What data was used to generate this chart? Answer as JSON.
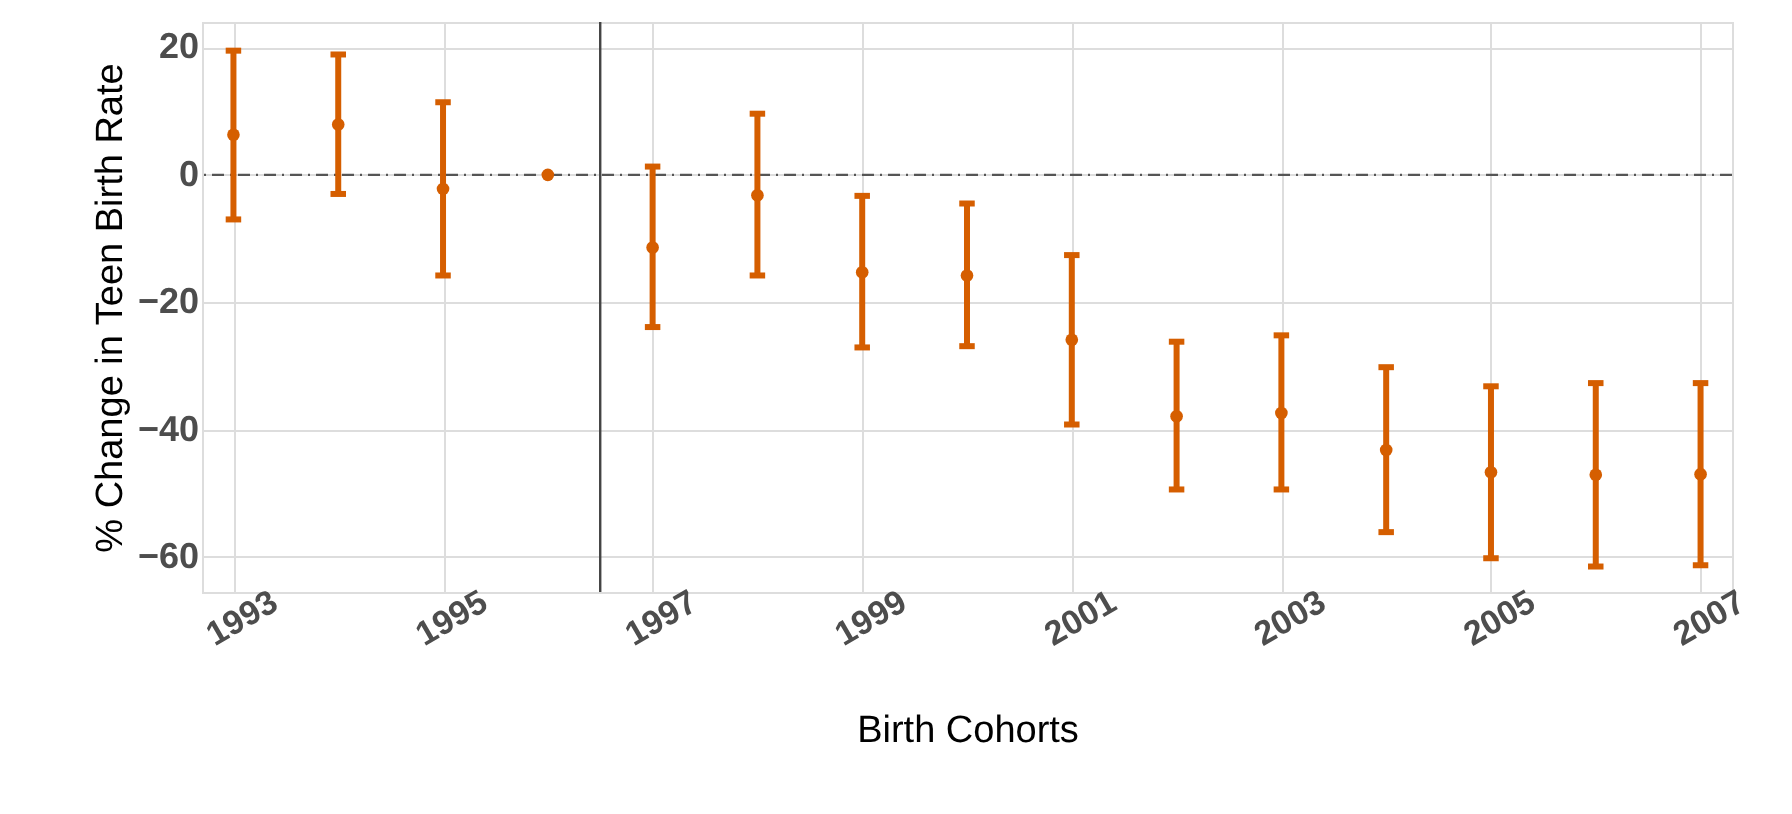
{
  "chart_data": {
    "type": "scatter",
    "xlabel": "Birth Cohorts",
    "ylabel": "% Change in Teen Birth Rate",
    "x": [
      1993,
      1994,
      1995,
      1996,
      1997,
      1998,
      1999,
      2000,
      2001,
      2002,
      2003,
      2004,
      2005,
      2006,
      2007
    ],
    "series": [
      {
        "color": "#d55e00",
        "values": [
          6.3,
          7.9,
          -2.2,
          0,
          -11.4,
          -3.2,
          -15.3,
          -15.8,
          -25.9,
          -37.9,
          -37.4,
          -43.2,
          -46.7,
          -47.1,
          -47.0
        ],
        "errors": [
          [
            -7.0,
            19.5
          ],
          [
            -3.0,
            18.9
          ],
          [
            -15.8,
            11.4
          ],
          null,
          [
            -23.9,
            1.3
          ],
          [
            -15.8,
            9.6
          ],
          [
            -27.1,
            -3.3
          ],
          [
            -26.9,
            -4.5
          ],
          [
            -39.2,
            -12.6
          ],
          [
            -49.4,
            -26.2
          ],
          [
            -49.4,
            -25.2
          ],
          [
            -56.1,
            -30.2
          ],
          [
            -60.2,
            -33.2
          ],
          [
            -61.5,
            -32.7
          ],
          [
            -61.3,
            -32.7
          ]
        ]
      }
    ],
    "xlim": [
      1992.7,
      2007.3
    ],
    "xticks": [
      1993,
      1995,
      1997,
      1999,
      2001,
      2003,
      2005,
      2007
    ],
    "ylim": [
      -65.5,
      24
    ],
    "yticks": [
      -60,
      -40,
      -20,
      0,
      20
    ],
    "ref_lines": [
      {
        "axis": "y",
        "value": 0,
        "color": "#555555",
        "line_style": "dashdot"
      },
      {
        "axis": "x",
        "value": 1996.5,
        "color": "#444444",
        "line_style": "solid"
      }
    ],
    "grid": true,
    "marker": "circle"
  }
}
